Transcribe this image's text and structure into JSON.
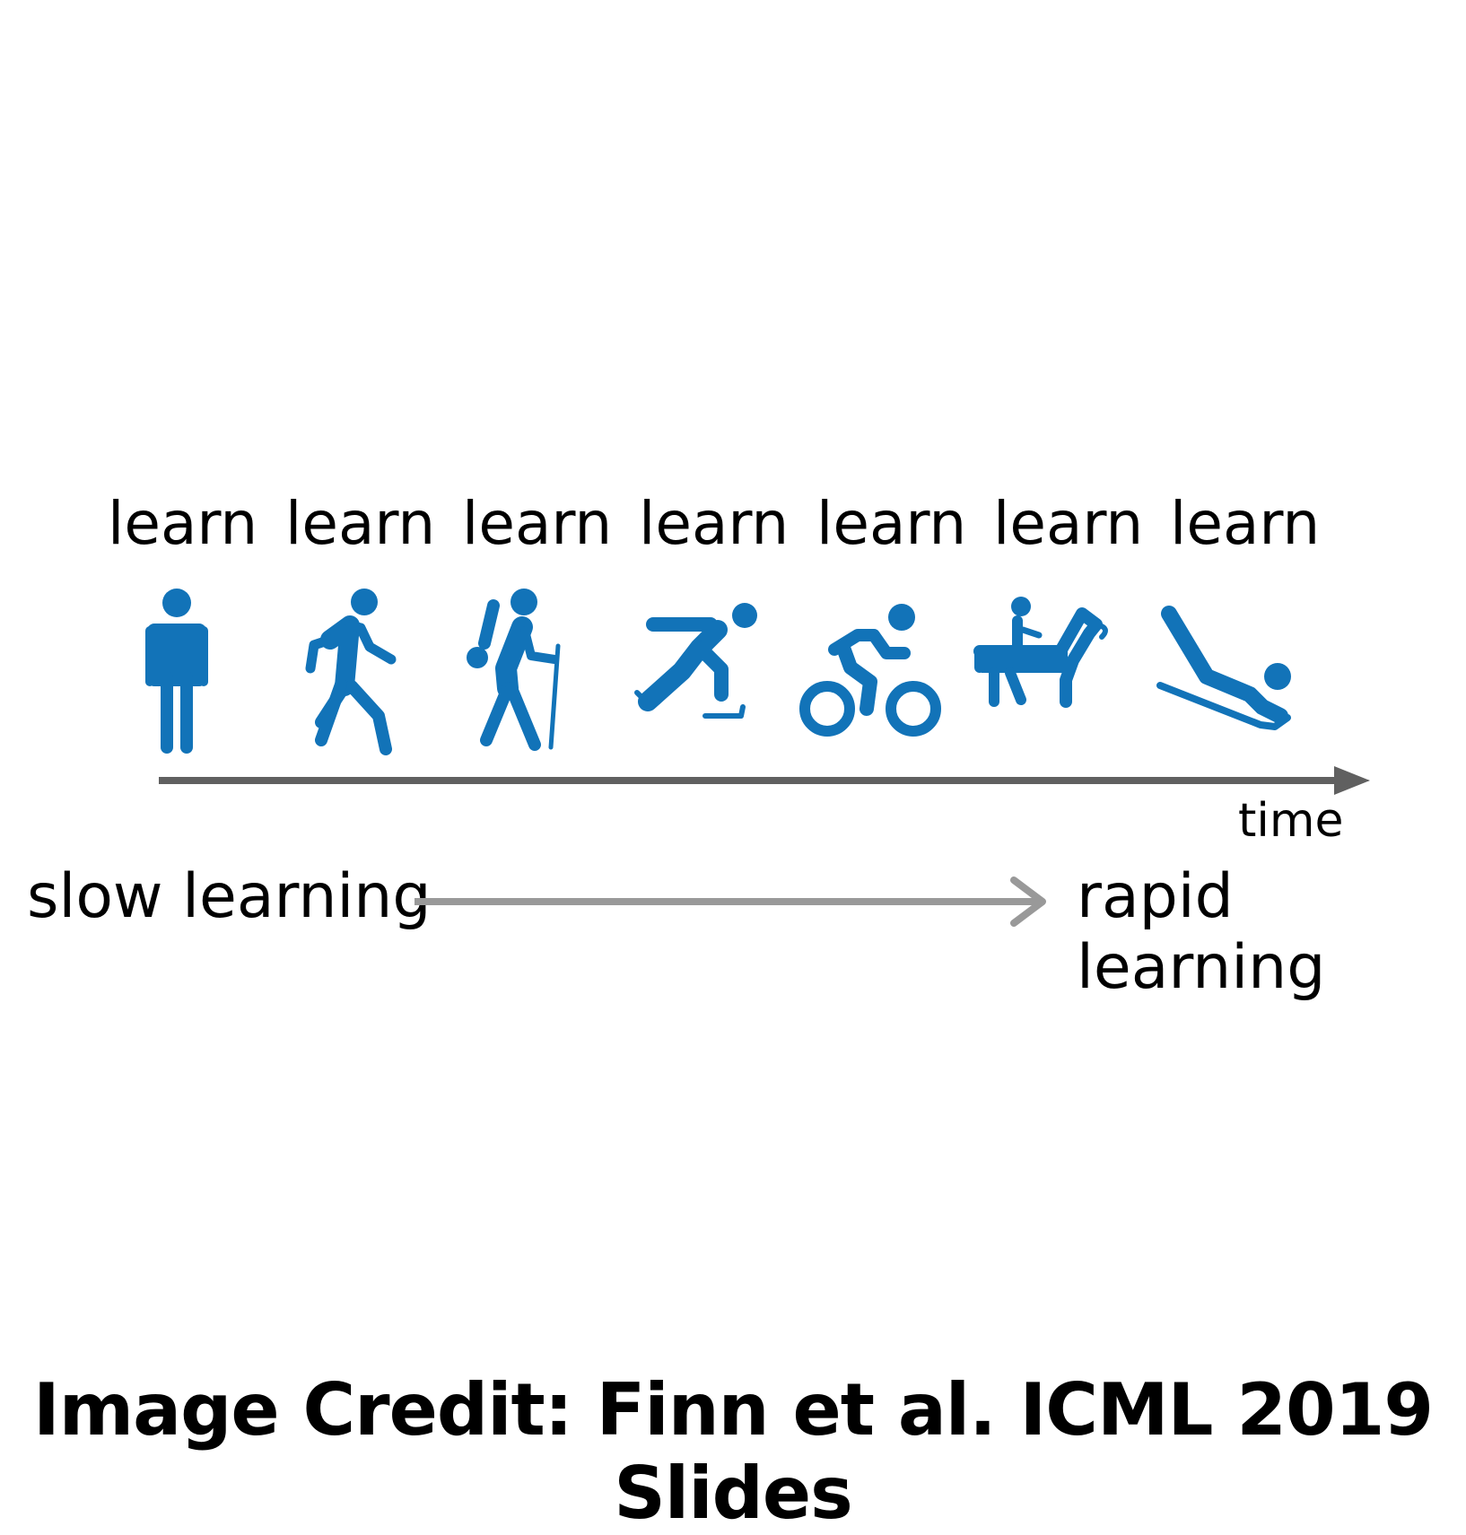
{
  "steps": [
    {
      "label": "learn",
      "icon": "standing-person-icon"
    },
    {
      "label": "learn",
      "icon": "walking-person-icon"
    },
    {
      "label": "learn",
      "icon": "hiker-icon"
    },
    {
      "label": "learn",
      "icon": "ice-skater-icon"
    },
    {
      "label": "learn",
      "icon": "cyclist-icon"
    },
    {
      "label": "learn",
      "icon": "horse-rider-icon"
    },
    {
      "label": "learn",
      "icon": "sledder-icon"
    }
  ],
  "timeline": {
    "axis_label": "time"
  },
  "progression": {
    "start_label": "slow learning",
    "end_label": "rapid learning"
  },
  "credit": "Image Credit: Finn et al. ICML 2019 Slides",
  "colors": {
    "icon": "#1273b8",
    "timeline_arrow": "#606060",
    "progression_arrow": "#999999",
    "text": "#000000"
  }
}
